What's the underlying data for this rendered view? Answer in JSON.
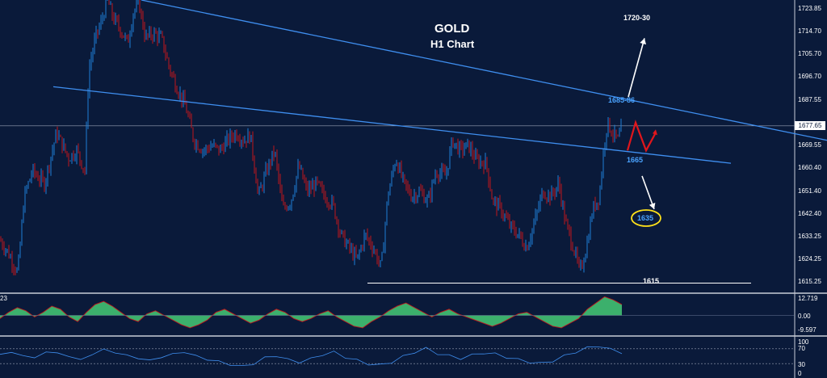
{
  "chart": {
    "title": "GOLD",
    "subtitle": "H1 Chart",
    "colors": {
      "background": "#0a1a3a",
      "bull": "#1f7fd6",
      "bear": "#c0161c",
      "trendline": "#3f8ff0",
      "oscillator_fill": "#3fb86f",
      "rsi_line": "#3f8ff0"
    },
    "annotations": {
      "target_up": "1720-30",
      "resistance": "1685-86",
      "support": "1665",
      "target_down": "1635",
      "floor": "1615"
    },
    "current_price": "1677.65",
    "price_axis_labels": [
      "1723.85",
      "1714.70",
      "1705.70",
      "1696.70",
      "1687.55",
      "1669.55",
      "1660.40",
      "1651.40",
      "1642.40",
      "1633.25",
      "1624.25",
      "1615.25"
    ],
    "oscillator_axis_labels": [
      "12.719",
      "0.00",
      "-9.597"
    ],
    "oscillator_left_label": "23",
    "rsi_axis_labels": [
      "100",
      "70",
      "30",
      "0"
    ]
  },
  "chart_data": {
    "type": "candlestick",
    "title": "GOLD",
    "subtitle": "H1 Chart",
    "ylim": [
      1613,
      1727
    ],
    "price_axis_ticks": [
      1723.85,
      1714.7,
      1705.7,
      1696.7,
      1687.55,
      1669.55,
      1660.4,
      1651.4,
      1642.4,
      1633.25,
      1624.25,
      1615.25
    ],
    "current_price": 1677.65,
    "grid": false,
    "close_path": [
      [
        0,
        1633
      ],
      [
        10,
        1628
      ],
      [
        22,
        1620
      ],
      [
        30,
        1650
      ],
      [
        40,
        1660
      ],
      [
        55,
        1655
      ],
      [
        70,
        1675
      ],
      [
        85,
        1665
      ],
      [
        95,
        1668
      ],
      [
        105,
        1660
      ],
      [
        110,
        1700
      ],
      [
        118,
        1712
      ],
      [
        125,
        1718
      ],
      [
        133,
        1727
      ],
      [
        140,
        1720
      ],
      [
        150,
        1715
      ],
      [
        158,
        1710
      ],
      [
        165,
        1722
      ],
      [
        172,
        1726
      ],
      [
        180,
        1712
      ],
      [
        190,
        1714
      ],
      [
        200,
        1712
      ],
      [
        210,
        1700
      ],
      [
        220,
        1692
      ],
      [
        230,
        1685
      ],
      [
        240,
        1672
      ],
      [
        252,
        1668
      ],
      [
        262,
        1670
      ],
      [
        272,
        1668
      ],
      [
        282,
        1672
      ],
      [
        292,
        1675
      ],
      [
        302,
        1672
      ],
      [
        310,
        1674
      ],
      [
        320,
        1650
      ],
      [
        330,
        1660
      ],
      [
        340,
        1668
      ],
      [
        350,
        1645
      ],
      [
        360,
        1648
      ],
      [
        370,
        1662
      ],
      [
        380,
        1652
      ],
      [
        392,
        1655
      ],
      [
        402,
        1650
      ],
      [
        412,
        1647
      ],
      [
        422,
        1635
      ],
      [
        432,
        1630
      ],
      [
        442,
        1625
      ],
      [
        452,
        1635
      ],
      [
        462,
        1630
      ],
      [
        472,
        1622
      ],
      [
        480,
        1650
      ],
      [
        490,
        1665
      ],
      [
        500,
        1655
      ],
      [
        510,
        1650
      ],
      [
        520,
        1652
      ],
      [
        530,
        1648
      ],
      [
        540,
        1660
      ],
      [
        552,
        1658
      ],
      [
        560,
        1672
      ],
      [
        570,
        1668
      ],
      [
        580,
        1670
      ],
      [
        590,
        1664
      ],
      [
        602,
        1663
      ],
      [
        610,
        1648
      ],
      [
        620,
        1645
      ],
      [
        632,
        1638
      ],
      [
        642,
        1635
      ],
      [
        652,
        1630
      ],
      [
        662,
        1640
      ],
      [
        672,
        1652
      ],
      [
        682,
        1650
      ],
      [
        692,
        1655
      ],
      [
        700,
        1640
      ],
      [
        710,
        1630
      ],
      [
        718,
        1620
      ],
      [
        726,
        1630
      ],
      [
        734,
        1645
      ],
      [
        742,
        1650
      ],
      [
        748,
        1670
      ],
      [
        752,
        1679
      ],
      [
        758,
        1675
      ],
      [
        765,
        1672
      ],
      [
        770,
        1677
      ]
    ],
    "trendlines": [
      {
        "name": "descending resistance",
        "from": [
          175,
          1727
        ],
        "to": [
          1024,
          1672
        ]
      },
      {
        "name": "descending support",
        "from": [
          66,
          1693
        ],
        "to": [
          905,
          1663
        ]
      },
      {
        "name": "horizontal support",
        "from": [
          455,
          1616
        ],
        "to": [
          930,
          1616
        ]
      }
    ],
    "projections": {
      "zigzag": [
        [
          777,
          1668
        ],
        [
          787,
          1679
        ],
        [
          800,
          1668
        ],
        [
          812,
          1675
        ]
      ],
      "up_arrow": {
        "from": [
          778,
          1689
        ],
        "to": [
          798,
          1712
        ],
        "label": "1720-30"
      },
      "down_arrow": {
        "from": [
          795,
          1658
        ],
        "to": [
          810,
          1645
        ],
        "label": "1635"
      }
    },
    "oscillator": {
      "ylim": [
        -9.597,
        12.719
      ],
      "values": [
        -2,
        2,
        5,
        3,
        -1,
        2,
        6,
        4,
        -1,
        -4,
        2,
        7,
        9,
        6,
        2,
        -2,
        -4,
        1,
        3,
        0,
        -3,
        -6,
        -8,
        -6,
        -3,
        2,
        4,
        1,
        -2,
        -5,
        -3,
        1,
        4,
        2,
        -2,
        -4,
        -2,
        1,
        3,
        -1,
        -4,
        -7,
        -8,
        -4,
        -1,
        3,
        6,
        8,
        5,
        2,
        -1,
        2,
        4,
        1,
        -1,
        -3,
        -5,
        -7,
        -5,
        -2,
        1,
        2,
        -1,
        -4,
        -7,
        -8,
        -5,
        -2,
        4,
        8,
        12,
        10,
        7
      ]
    },
    "rsi": {
      "ylim": [
        0,
        100
      ],
      "levels": [
        70,
        30
      ],
      "values": [
        55,
        60,
        52,
        45,
        62,
        58,
        50,
        40,
        55,
        68,
        60,
        52,
        45,
        38,
        48,
        55,
        62,
        50,
        42,
        35,
        28,
        22,
        30,
        45,
        52,
        40,
        35,
        42,
        55,
        60,
        48,
        38,
        30,
        25,
        35,
        48,
        62,
        70,
        58,
        50,
        45,
        52,
        60,
        55,
        48,
        40,
        35,
        30,
        38,
        50,
        62,
        72,
        78,
        68,
        60
      ]
    }
  }
}
